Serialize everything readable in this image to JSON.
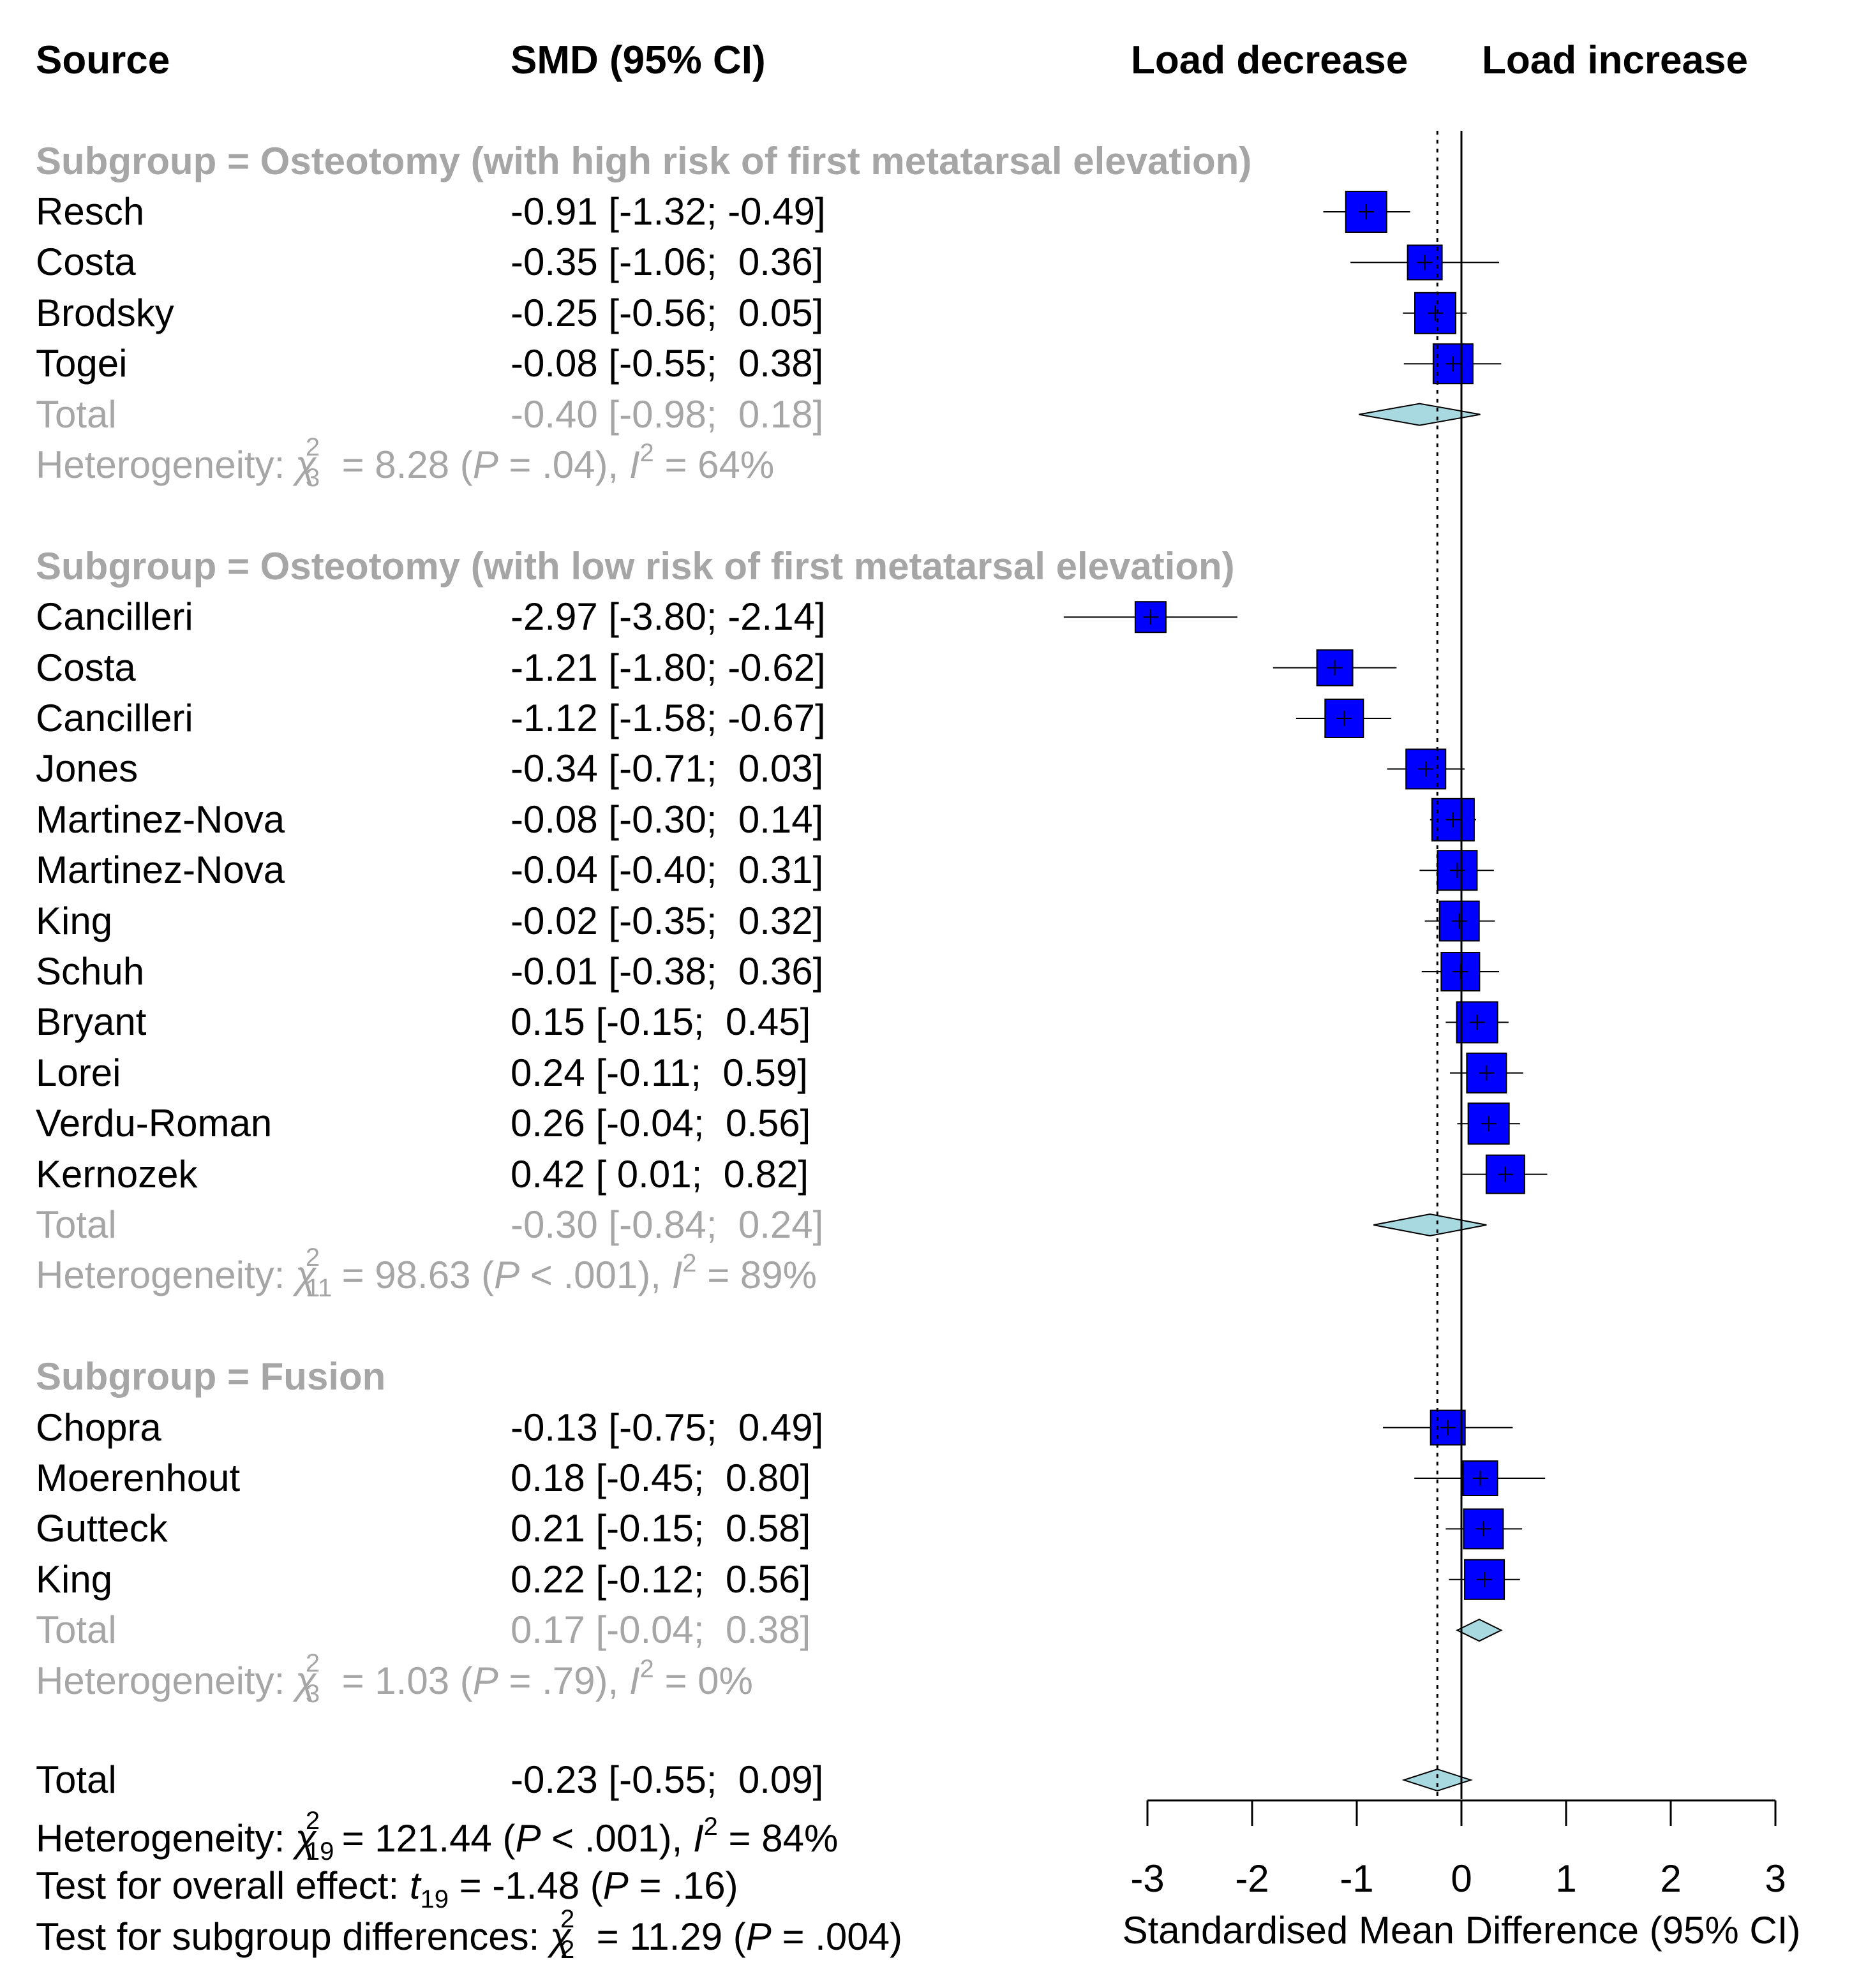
{
  "headers": {
    "source": "Source",
    "smd": "SMD (95% CI)",
    "load_decrease": "Load decrease",
    "load_increase": "Load increase"
  },
  "subgroups": [
    {
      "title": "Subgroup = Osteotomy (with high risk of first metatarsal elevation)",
      "studies": [
        {
          "name": "Resch",
          "smd_text": "-0.91 [-1.32; -0.49]",
          "est": -0.91,
          "lo": -1.32,
          "hi": -0.49,
          "box": 64
        },
        {
          "name": "Costa",
          "smd_text": "-0.35 [-1.06;  0.36]",
          "est": -0.35,
          "lo": -1.06,
          "hi": 0.36,
          "box": 54
        },
        {
          "name": "Brodsky",
          "smd_text": "-0.25 [-0.56;  0.05]",
          "est": -0.25,
          "lo": -0.56,
          "hi": 0.05,
          "box": 64
        },
        {
          "name": "Togei",
          "smd_text": "-0.08 [-0.55;  0.38]",
          "est": -0.08,
          "lo": -0.55,
          "hi": 0.38,
          "box": 62
        }
      ],
      "total_label": "Total",
      "total_text": "-0.40 [-0.98;  0.18]",
      "total": {
        "est": -0.4,
        "lo": -0.98,
        "hi": 0.18
      },
      "het": {
        "label": "Heterogeneity: ",
        "chi_sub": "3",
        "chi_sup": "2",
        "chi_val": " = 8.28 (",
        "p_label": "P",
        "p_val": " = .04), ",
        "i_label": "I",
        "i_sup": "2",
        "i_val": " = 64%"
      }
    },
    {
      "title": "Subgroup = Osteotomy (with low risk of first metatarsal elevation)",
      "studies": [
        {
          "name": "Cancilleri",
          "smd_text": "-2.97 [-3.80; -2.14]",
          "est": -2.97,
          "lo": -3.8,
          "hi": -2.14,
          "box": 48
        },
        {
          "name": "Costa",
          "smd_text": "-1.21 [-1.80; -0.62]",
          "est": -1.21,
          "lo": -1.8,
          "hi": -0.62,
          "box": 56
        },
        {
          "name": "Cancilleri",
          "smd_text": "-1.12 [-1.58; -0.67]",
          "est": -1.12,
          "lo": -1.58,
          "hi": -0.67,
          "box": 60
        },
        {
          "name": "Jones",
          "smd_text": "-0.34 [-0.71;  0.03]",
          "est": -0.34,
          "lo": -0.71,
          "hi": 0.03,
          "box": 62
        },
        {
          "name": "Martinez-Nova",
          "smd_text": "-0.08 [-0.30;  0.14]",
          "est": -0.08,
          "lo": -0.3,
          "hi": 0.14,
          "box": 66
        },
        {
          "name": "Martinez-Nova",
          "smd_text": "-0.04 [-0.40;  0.31]",
          "est": -0.04,
          "lo": -0.4,
          "hi": 0.31,
          "box": 62
        },
        {
          "name": "King",
          "smd_text": "-0.02 [-0.35;  0.32]",
          "est": -0.02,
          "lo": -0.35,
          "hi": 0.32,
          "box": 62
        },
        {
          "name": "Schuh",
          "smd_text": "-0.01 [-0.38;  0.36]",
          "est": -0.01,
          "lo": -0.38,
          "hi": 0.36,
          "box": 60
        },
        {
          "name": "Bryant",
          "smd_text": "0.15 [-0.15;  0.45]",
          "est": 0.15,
          "lo": -0.15,
          "hi": 0.45,
          "box": 64
        },
        {
          "name": "Lorei",
          "smd_text": "0.24 [-0.11;  0.59]",
          "est": 0.24,
          "lo": -0.11,
          "hi": 0.59,
          "box": 62
        },
        {
          "name": "Verdu-Roman",
          "smd_text": "0.26 [-0.04;  0.56]",
          "est": 0.26,
          "lo": -0.04,
          "hi": 0.56,
          "box": 64
        },
        {
          "name": "Kernozek",
          "smd_text": "0.42 [ 0.01;  0.82]",
          "est": 0.42,
          "lo": 0.01,
          "hi": 0.82,
          "box": 60
        }
      ],
      "total_label": "Total",
      "total_text": "-0.30 [-0.84;  0.24]",
      "total": {
        "est": -0.3,
        "lo": -0.84,
        "hi": 0.24
      },
      "het": {
        "label": "Heterogeneity: ",
        "chi_sub": "11",
        "chi_sup": "2",
        "chi_val": " = 98.63 (",
        "p_label": "P",
        "p_val": " < .001), ",
        "i_label": "I",
        "i_sup": "2",
        "i_val": " = 89%"
      }
    },
    {
      "title": "Subgroup = Fusion",
      "studies": [
        {
          "name": "Chopra",
          "smd_text": "-0.13 [-0.75;  0.49]",
          "est": -0.13,
          "lo": -0.75,
          "hi": 0.49,
          "box": 54
        },
        {
          "name": "Moerenhout",
          "smd_text": "0.18 [-0.45;  0.80]",
          "est": 0.18,
          "lo": -0.45,
          "hi": 0.8,
          "box": 54
        },
        {
          "name": "Gutteck",
          "smd_text": "0.21 [-0.15;  0.58]",
          "est": 0.21,
          "lo": -0.15,
          "hi": 0.58,
          "box": 62
        },
        {
          "name": "King",
          "smd_text": "0.22 [-0.12;  0.56]",
          "est": 0.22,
          "lo": -0.12,
          "hi": 0.56,
          "box": 62
        }
      ],
      "total_label": "Total",
      "total_text": "0.17 [-0.04;  0.38]",
      "total": {
        "est": 0.17,
        "lo": -0.04,
        "hi": 0.38
      },
      "het": {
        "label": "Heterogeneity: ",
        "chi_sub": "3",
        "chi_sup": "2",
        "chi_val": " = 1.03 (",
        "p_label": "P",
        "p_val": " = .79), ",
        "i_label": "I",
        "i_sup": "2",
        "i_val": " = 0%"
      }
    }
  ],
  "overall": {
    "label": "Total",
    "smd_text": "-0.23 [-0.55;  0.09]",
    "est": -0.23,
    "lo": -0.55,
    "hi": 0.09,
    "het": {
      "label": "Heterogeneity: ",
      "chi_sub": "19",
      "chi_sup": "2",
      "chi_val": " = 121.44 (",
      "p_label": "P",
      "p_val": " < .001), ",
      "i_label": "I",
      "i_sup": "2",
      "i_val": " = 84%"
    },
    "effect": {
      "label": "Test for overall effect: ",
      "t_label": "t",
      "t_sub": "19",
      "t_val": " = -1.48 (",
      "p_label": "P",
      "p_val": " = .16)"
    },
    "subdiff": {
      "label": "Test for subgroup differences: ",
      "chi_sub": "2",
      "chi_sup": "2",
      "chi_val": " = 11.29 (",
      "p_label": "P",
      "p_val": " = .004)"
    }
  },
  "chart_data": {
    "type": "forest",
    "xlabel": "Standardised Mean Difference (95% CI)",
    "xlim": [
      -3,
      3
    ],
    "ticks": [
      "-3",
      "-2",
      "-1",
      "0",
      "1",
      "2",
      "3"
    ],
    "reference_line": -0.23,
    "null_line": 0
  },
  "colors": {
    "box": "#0000ff",
    "diamond": "#a8d8e0",
    "grey": "#a6a6a6"
  }
}
